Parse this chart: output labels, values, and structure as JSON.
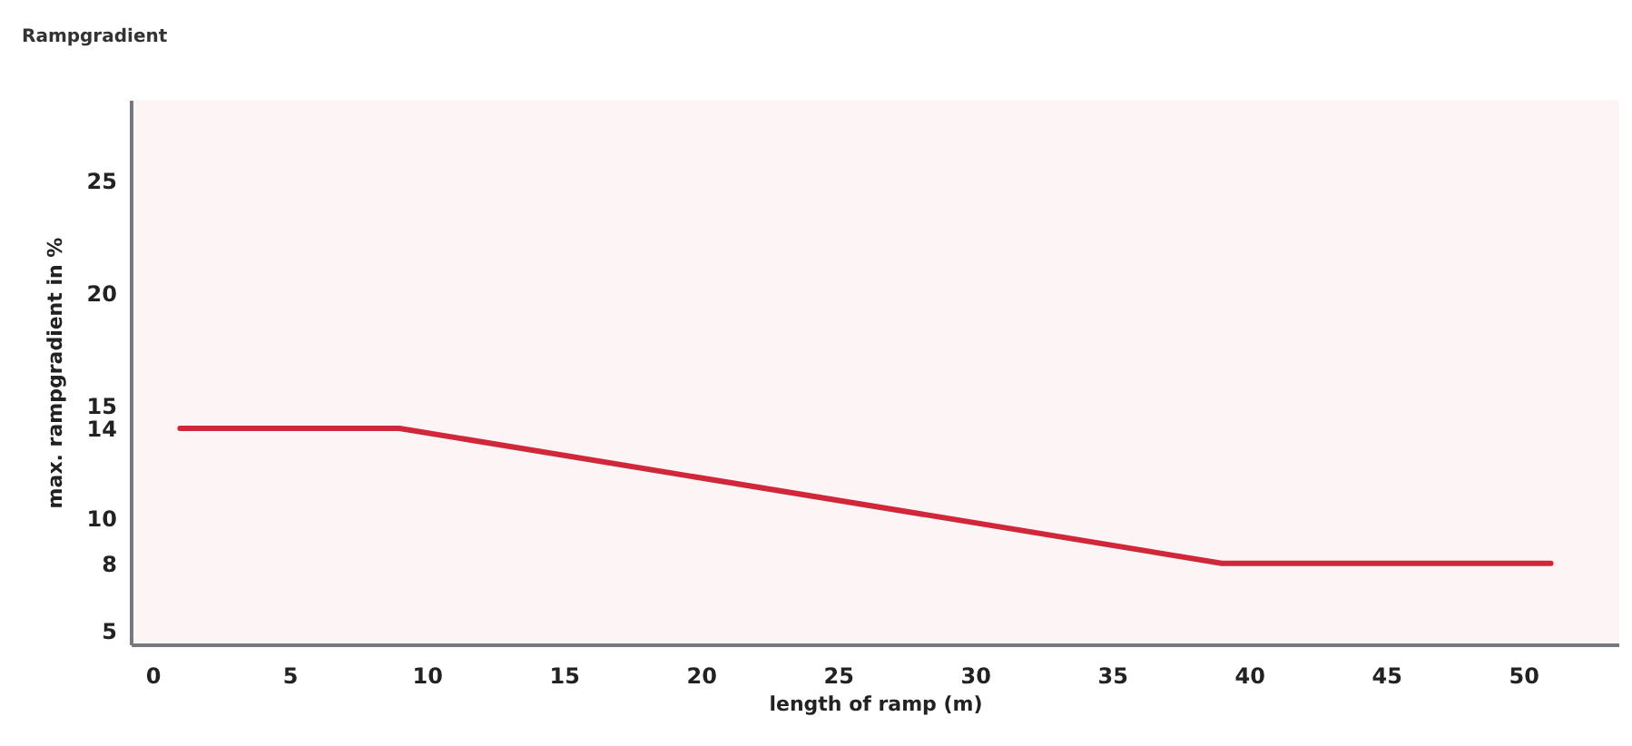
{
  "chart_data": {
    "type": "line",
    "title": "Rampgradient",
    "xlabel": "length of ramp (m)",
    "ylabel": "max. rampgradient in %",
    "x": [
      1,
      9,
      39,
      51
    ],
    "series": [
      {
        "color": "#d0283a",
        "values": [
          14,
          14,
          8,
          8
        ]
      }
    ],
    "xlim": [
      -0.8,
      53.5
    ],
    "xticks": [
      0,
      5,
      10,
      15,
      20,
      25,
      30,
      35,
      40,
      45,
      50
    ],
    "ylim": [
      4.4,
      28.6
    ],
    "yticks": [
      5,
      8,
      10,
      14,
      15,
      20,
      25
    ],
    "grid": false,
    "marker": "none",
    "line_style": "solid"
  }
}
